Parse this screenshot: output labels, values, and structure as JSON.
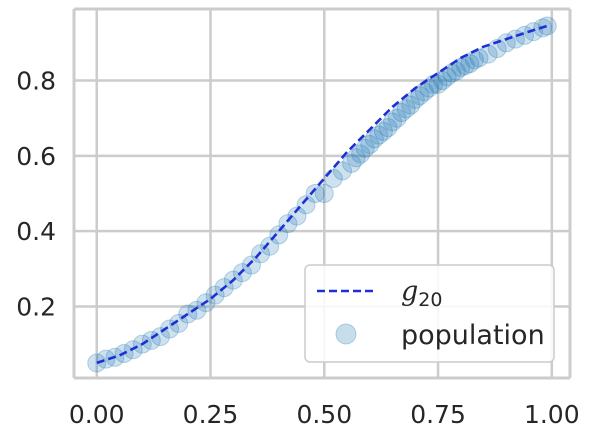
{
  "chart_data": {
    "type": "scatter",
    "title": "",
    "xlabel": "",
    "ylabel": "",
    "xlim": [
      -0.05,
      1.04
    ],
    "ylim": [
      0.01,
      0.99
    ],
    "xticks": [
      0.0,
      0.25,
      0.5,
      0.75,
      1.0
    ],
    "xtick_labels": [
      "0.00",
      "0.25",
      "0.50",
      "0.75",
      "1.00"
    ],
    "yticks": [
      0.2,
      0.4,
      0.6,
      0.8
    ],
    "ytick_labels": [
      "0.2",
      "0.4",
      "0.6",
      "0.8"
    ],
    "grid": true,
    "legend_position": "lower-right",
    "series": [
      {
        "name": "g",
        "name_subscript": "20",
        "kind": "line",
        "style": "dashed",
        "color": "#1f2fd6",
        "x": [
          0.0,
          0.05,
          0.1,
          0.15,
          0.2,
          0.25,
          0.3,
          0.35,
          0.4,
          0.45,
          0.5,
          0.55,
          0.6,
          0.65,
          0.7,
          0.75,
          0.8,
          0.85,
          0.9,
          0.95,
          0.99
        ],
        "y": [
          0.05,
          0.07,
          0.1,
          0.14,
          0.18,
          0.22,
          0.27,
          0.33,
          0.4,
          0.47,
          0.54,
          0.61,
          0.67,
          0.73,
          0.78,
          0.82,
          0.86,
          0.89,
          0.91,
          0.93,
          0.945
        ]
      },
      {
        "name": "population",
        "kind": "scatter",
        "color": "#1f77b4",
        "x": [
          0.0,
          0.02,
          0.04,
          0.06,
          0.08,
          0.1,
          0.12,
          0.14,
          0.16,
          0.18,
          0.2,
          0.22,
          0.24,
          0.26,
          0.28,
          0.3,
          0.32,
          0.34,
          0.36,
          0.38,
          0.4,
          0.42,
          0.44,
          0.46,
          0.48,
          0.5,
          0.52,
          0.54,
          0.56,
          0.57,
          0.58,
          0.59,
          0.6,
          0.61,
          0.62,
          0.63,
          0.64,
          0.65,
          0.66,
          0.67,
          0.68,
          0.69,
          0.7,
          0.71,
          0.72,
          0.73,
          0.74,
          0.75,
          0.76,
          0.77,
          0.78,
          0.79,
          0.8,
          0.81,
          0.82,
          0.83,
          0.84,
          0.86,
          0.88,
          0.9,
          0.92,
          0.94,
          0.96,
          0.98,
          0.99
        ],
        "y": [
          0.05,
          0.06,
          0.065,
          0.075,
          0.085,
          0.1,
          0.11,
          0.12,
          0.14,
          0.155,
          0.18,
          0.19,
          0.21,
          0.23,
          0.25,
          0.27,
          0.29,
          0.31,
          0.34,
          0.36,
          0.39,
          0.42,
          0.44,
          0.47,
          0.5,
          0.5,
          0.54,
          0.56,
          0.58,
          0.595,
          0.605,
          0.62,
          0.63,
          0.645,
          0.655,
          0.665,
          0.675,
          0.69,
          0.7,
          0.715,
          0.725,
          0.735,
          0.75,
          0.76,
          0.77,
          0.78,
          0.79,
          0.79,
          0.8,
          0.81,
          0.82,
          0.825,
          0.835,
          0.84,
          0.845,
          0.855,
          0.86,
          0.87,
          0.885,
          0.9,
          0.91,
          0.92,
          0.93,
          0.94,
          0.945
        ]
      }
    ]
  }
}
